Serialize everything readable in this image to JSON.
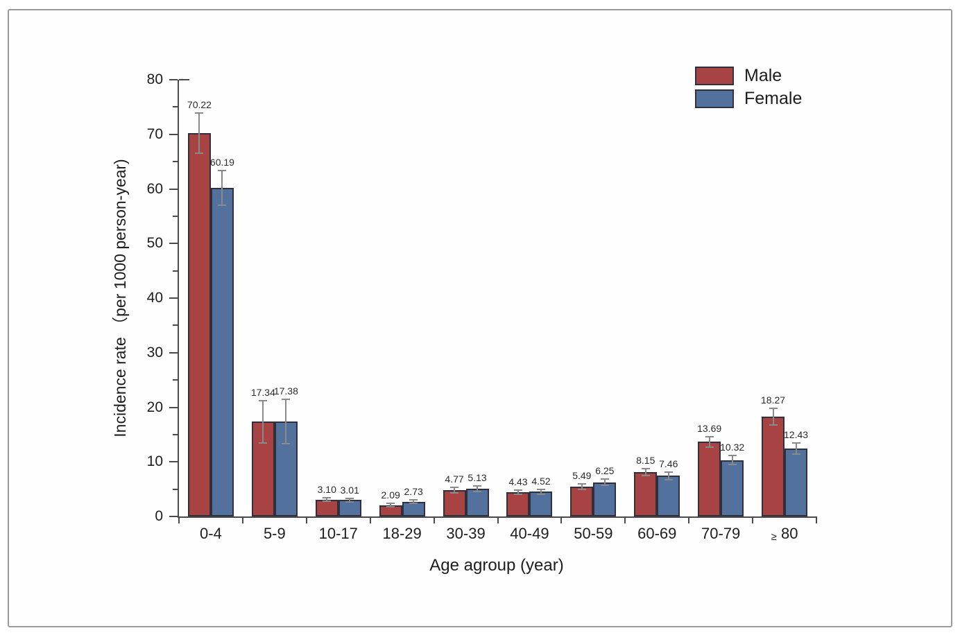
{
  "page": {
    "background": "#ffffff",
    "frame_border_color": "#9a9a9a"
  },
  "chart_data": {
    "type": "bar",
    "title": "",
    "xlabel": "Age agroup (year)",
    "ylabel": "Incidence rate （per 1000 person-year)",
    "ylim": [
      0,
      80
    ],
    "ytick_major_step": 10,
    "ytick_minor_step": 5,
    "grid": false,
    "legend_position": "top-right",
    "categories": [
      "0-4",
      "5-9",
      "10-17",
      "18-29",
      "30-39",
      "40-49",
      "50-59",
      "60-69",
      "70-79",
      "≥ 80"
    ],
    "series": [
      {
        "name": "Male",
        "color": "#a84343",
        "values": [
          70.22,
          17.34,
          3.1,
          2.09,
          4.77,
          4.43,
          5.49,
          8.15,
          13.69,
          18.27
        ],
        "labels": [
          "70.22",
          "17.34",
          "3.10",
          "2.09",
          "4.77",
          "4.43",
          "5.49",
          "8.15",
          "13.69",
          "18.27"
        ],
        "errors": [
          3.7,
          3.9,
          0.35,
          0.3,
          0.5,
          0.35,
          0.5,
          0.6,
          0.95,
          1.5
        ]
      },
      {
        "name": "Female",
        "color": "#52719c",
        "values": [
          60.19,
          17.38,
          3.01,
          2.73,
          5.13,
          4.52,
          6.25,
          7.46,
          10.32,
          12.43
        ],
        "labels": [
          "60.19",
          "17.38",
          "3.01",
          "2.73",
          "5.13",
          "4.52",
          "6.25",
          "7.46",
          "10.32",
          "12.43"
        ],
        "errors": [
          3.2,
          4.1,
          0.35,
          0.3,
          0.5,
          0.4,
          0.55,
          0.7,
          0.8,
          1.0
        ]
      }
    ],
    "style": {
      "bar_border_color": "#30303c",
      "error_bar_color": "#8a8a8a",
      "axis_color": "#4a4a4a",
      "text_color": "#1d1d1d"
    }
  }
}
